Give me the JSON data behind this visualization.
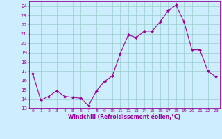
{
  "x": [
    0,
    1,
    2,
    3,
    4,
    5,
    6,
    7,
    8,
    9,
    10,
    11,
    12,
    13,
    14,
    15,
    16,
    17,
    18,
    19,
    20,
    21,
    22,
    23
  ],
  "y": [
    16.7,
    13.9,
    14.3,
    14.9,
    14.3,
    14.2,
    14.1,
    13.3,
    14.9,
    15.9,
    16.5,
    18.9,
    20.9,
    20.6,
    21.3,
    21.3,
    22.3,
    23.5,
    24.1,
    22.3,
    19.3,
    19.3,
    17.0,
    16.4
  ],
  "line_color": "#990099",
  "marker": "D",
  "marker_size": 2.0,
  "bg_color": "#cceeff",
  "grid_color": "#99cccc",
  "xlabel": "Windchill (Refroidissement éolien,°C)",
  "xlabel_color": "#990099",
  "tick_color": "#990099",
  "spine_color": "#990099",
  "ylim": [
    13,
    24.5
  ],
  "yticks": [
    13,
    14,
    15,
    16,
    17,
    18,
    19,
    20,
    21,
    22,
    23,
    24
  ],
  "xlim": [
    -0.5,
    23.5
  ],
  "xticks": [
    0,
    1,
    2,
    3,
    4,
    5,
    6,
    7,
    8,
    9,
    10,
    11,
    12,
    13,
    14,
    15,
    16,
    17,
    18,
    19,
    20,
    21,
    22,
    23
  ],
  "xtick_labels": [
    "0",
    "1",
    "2",
    "3",
    "4",
    "5",
    "6",
    "7",
    "8",
    "9",
    "10",
    "11",
    "12",
    "13",
    "14",
    "15",
    "16",
    "17",
    "18",
    "19",
    "20",
    "21",
    "22",
    "23"
  ]
}
